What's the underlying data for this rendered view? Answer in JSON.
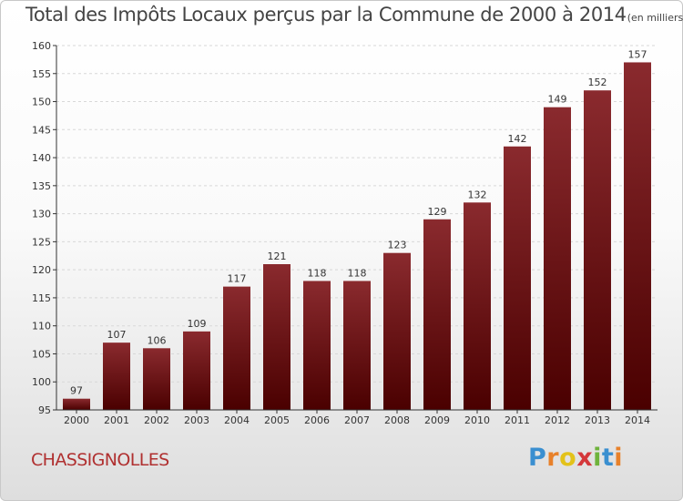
{
  "title": "Total des Impôts Locaux perçus par la Commune de 2000 à 2014",
  "title_unit": "(en milliers d'€)",
  "commune": "CHASSIGNOLLES",
  "logo": {
    "letters": [
      "P",
      "r",
      "o",
      "x",
      "i",
      "t",
      "i"
    ],
    "colors": [
      "#3a8fd0",
      "#e8812a",
      "#e3c21a",
      "#d4373a",
      "#6fb33c",
      "#3a8fd0",
      "#e8812a"
    ]
  },
  "colors": {
    "bar_top": "#8a2a2e",
    "bar_bottom": "#4a0000",
    "grid": "#d8d8d8",
    "axis": "#333333"
  },
  "chart_data": {
    "type": "bar",
    "title": "Total des Impôts Locaux perçus par la Commune de 2000 à 2014",
    "categories": [
      "2000",
      "2001",
      "2002",
      "2003",
      "2004",
      "2005",
      "2006",
      "2007",
      "2008",
      "2009",
      "2010",
      "2011",
      "2012",
      "2013",
      "2014"
    ],
    "values": [
      97,
      107,
      106,
      109,
      117,
      121,
      118,
      118,
      123,
      129,
      132,
      142,
      149,
      152,
      157
    ],
    "ylim": [
      95,
      160
    ],
    "yticks": [
      95,
      100,
      105,
      110,
      115,
      120,
      125,
      130,
      135,
      140,
      145,
      150,
      155,
      160
    ],
    "grid": "horizontal dashed",
    "legend": "none"
  }
}
